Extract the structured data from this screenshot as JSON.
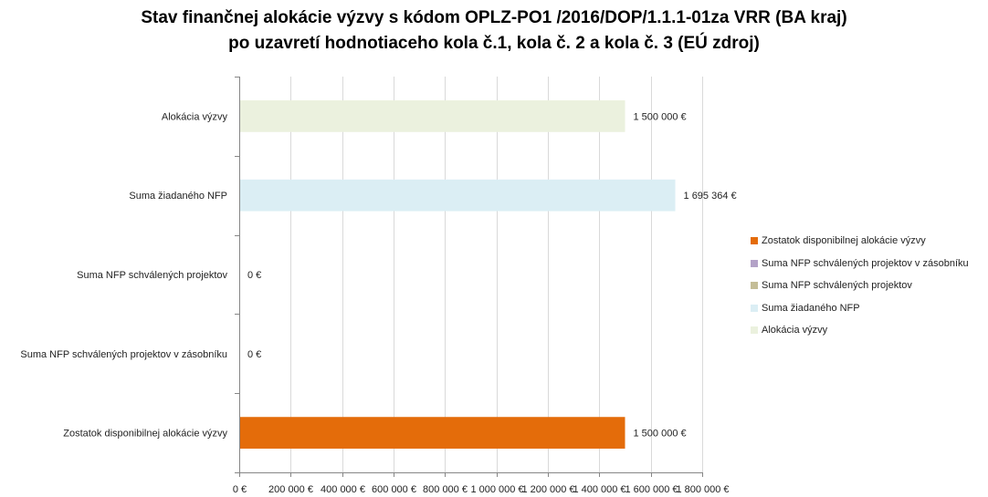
{
  "chart_data": {
    "type": "bar",
    "orientation": "horizontal",
    "title_line1": "Stav finančnej alokácie výzvy s kódom OPLZ-PO1 /2016/DOP/1.1.1-01za  VRR (BA kraj)",
    "title_line2": "po uzavretí hodnotiaceho kola č.1, kola č. 2 a kola č. 3 (EÚ zdroj)",
    "categories": [
      "Alokácia výzvy",
      "Suma žiadaného NFP",
      "Suma NFP schválených projektov",
      "Suma NFP schválených projektov v zásobníku",
      "Zostatok disponibilnej alokácie výzvy"
    ],
    "values": [
      1500000,
      1695364,
      0,
      0,
      1500000
    ],
    "value_labels": [
      "1 500 000 €",
      "1 695 364 €",
      "0 €",
      "0 €",
      "1 500 000 €"
    ],
    "colors": [
      "#ebf1de",
      "#dbeef4",
      "#c4bd97",
      "#b3a2c7",
      "#e46c0a"
    ],
    "xlim": [
      0,
      1800000
    ],
    "x_ticks": [
      "0 €",
      "200 000 €",
      "400 000 €",
      "600 000 €",
      "800 000 €",
      "1 000 000 €",
      "1 200 000 €",
      "1 400 000 €",
      "1 600 000 €",
      "1 800 000 €"
    ],
    "grid": true,
    "legend_position": "right",
    "legend": [
      {
        "label": "Zostatok disponibilnej alokácie výzvy",
        "color": "#e46c0a"
      },
      {
        "label": "Suma NFP schválených projektov v zásobníku",
        "color": "#b3a2c7"
      },
      {
        "label": "Suma NFP schválených projektov",
        "color": "#c4bd97"
      },
      {
        "label": "Suma žiadaného NFP",
        "color": "#dbeef4"
      },
      {
        "label": "Alokácia výzvy",
        "color": "#ebf1de"
      }
    ]
  }
}
